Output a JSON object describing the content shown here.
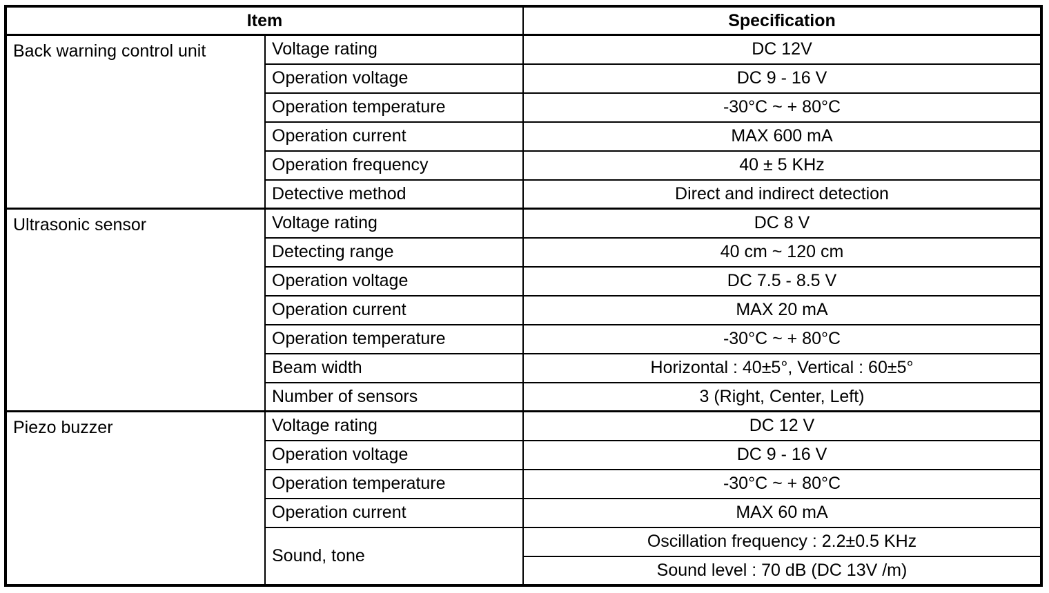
{
  "table": {
    "colors": {
      "border": "#000000",
      "background": "#ffffff",
      "text": "#000000"
    },
    "header": {
      "item": "Item",
      "specification": "Specification"
    },
    "groups": [
      {
        "name": "Back warning control unit",
        "rows": [
          {
            "item": "Voltage rating",
            "spec": "DC 12V"
          },
          {
            "item": "Operation voltage",
            "spec": "DC 9 - 16 V"
          },
          {
            "item": "Operation temperature",
            "spec": "-30°C ~ + 80°C"
          },
          {
            "item": "Operation current",
            "spec": "MAX 600 mA"
          },
          {
            "item": "Operation frequency",
            "spec": "40 ± 5 KHz"
          },
          {
            "item": "Detective method",
            "spec": "Direct and indirect detection"
          }
        ]
      },
      {
        "name": "Ultrasonic sensor",
        "rows": [
          {
            "item": "Voltage rating",
            "spec": "DC 8 V"
          },
          {
            "item": "Detecting range",
            "spec": "40 cm ~ 120 cm"
          },
          {
            "item": "Operation voltage",
            "spec": "DC 7.5 - 8.5 V"
          },
          {
            "item": "Operation current",
            "spec": "MAX 20 mA"
          },
          {
            "item": "Operation temperature",
            "spec": "-30°C ~ + 80°C"
          },
          {
            "item": "Beam width",
            "spec": "Horizontal : 40±5°, Vertical : 60±5°"
          },
          {
            "item": "Number of sensors",
            "spec": "3 (Right, Center, Left)"
          }
        ]
      },
      {
        "name": "Piezo buzzer",
        "rows": [
          {
            "item": "Voltage rating",
            "spec": "DC 12 V"
          },
          {
            "item": "Operation voltage",
            "spec": "DC 9 - 16 V"
          },
          {
            "item": "Operation temperature",
            "spec": "-30°C ~ + 80°C"
          },
          {
            "item": "Operation current",
            "spec": "MAX 60 mA"
          },
          {
            "item": "Sound, tone",
            "specs": [
              "Oscillation frequency : 2.2±0.5 KHz",
              "Sound level : 70 dB (DC 13V /m)"
            ]
          }
        ]
      }
    ]
  }
}
